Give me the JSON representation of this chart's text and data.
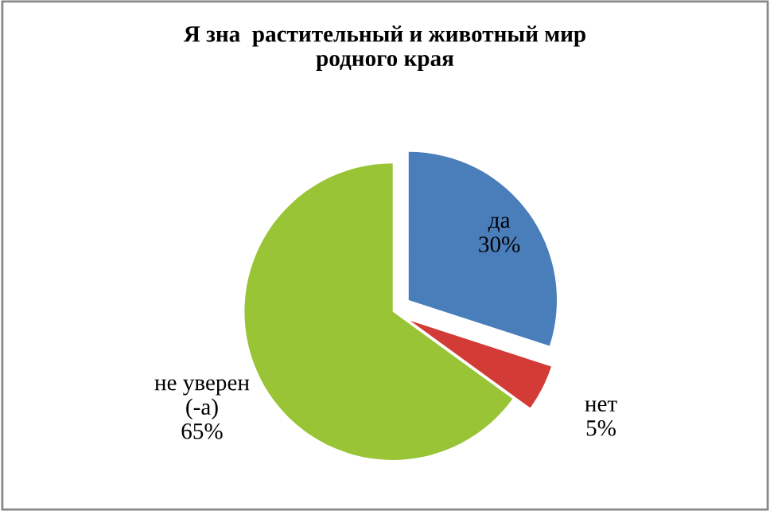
{
  "chart_data": {
    "type": "pie",
    "title": "Я зна  растительный и животный мир\nродного края",
    "categories": [
      "да",
      "нет",
      "не уверен\n(-а)"
    ],
    "values": [
      30,
      5,
      65
    ],
    "value_labels": [
      "30%",
      "5%",
      "65%"
    ],
    "colors": [
      "#4a7ebb",
      "#d23b36",
      "#99c435"
    ],
    "legend": false
  }
}
